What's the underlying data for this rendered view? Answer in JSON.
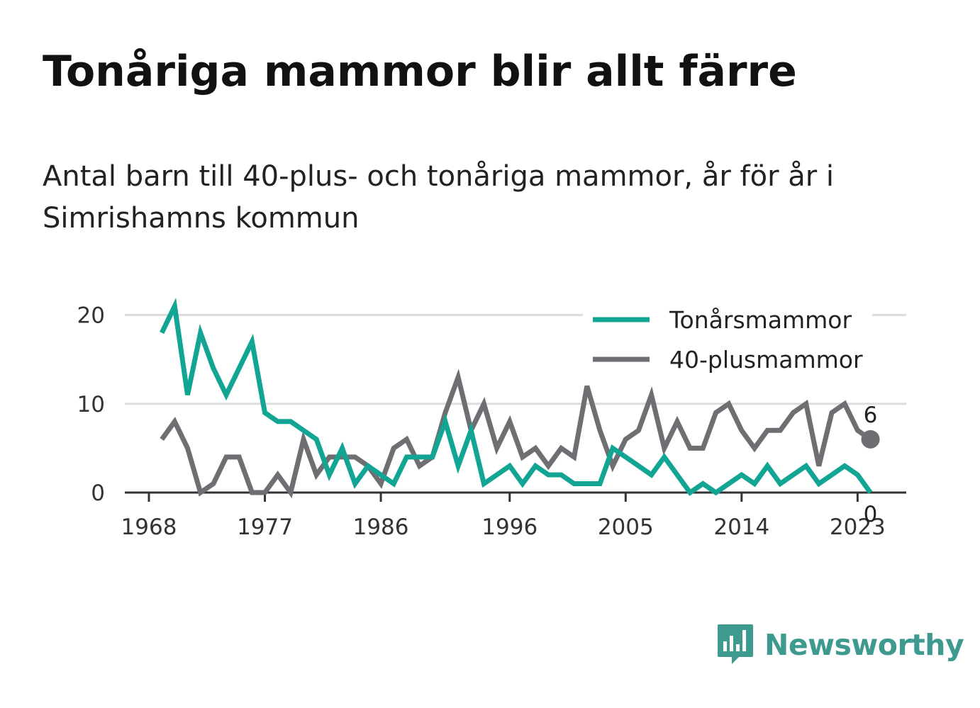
{
  "title": "Tonåriga mammor blir allt färre",
  "subtitle": "Antal barn till 40-plus- och tonåriga mammor, år för år i Simrishamns kommun",
  "brand": {
    "name": "Newsworthy",
    "icon": "newsworthy-logo-icon",
    "color": "#3e9a8f"
  },
  "chart_data": {
    "type": "line",
    "x": [
      1969,
      1970,
      1971,
      1972,
      1973,
      1974,
      1975,
      1976,
      1977,
      1978,
      1979,
      1980,
      1981,
      1982,
      1983,
      1984,
      1985,
      1986,
      1987,
      1988,
      1989,
      1990,
      1991,
      1992,
      1993,
      1994,
      1995,
      1996,
      1997,
      1998,
      1999,
      2000,
      2001,
      2002,
      2003,
      2004,
      2005,
      2006,
      2007,
      2008,
      2009,
      2010,
      2011,
      2012,
      2013,
      2014,
      2015,
      2016,
      2017,
      2018,
      2019,
      2020,
      2021,
      2022,
      2023,
      2024
    ],
    "series": [
      {
        "name": "Tonårsmammor",
        "color": "#12a594",
        "values": [
          18,
          21,
          11,
          18,
          14,
          11,
          14,
          17,
          9,
          8,
          8,
          7,
          6,
          2,
          5,
          1,
          3,
          2,
          1,
          4,
          4,
          4,
          8,
          3,
          7,
          1,
          2,
          3,
          1,
          3,
          2,
          2,
          1,
          1,
          1,
          5,
          4,
          3,
          2,
          4,
          2,
          0,
          1,
          0,
          1,
          2,
          1,
          3,
          1,
          2,
          3,
          1,
          2,
          3,
          2,
          0
        ]
      },
      {
        "name": "40-plusmammor",
        "color": "#6e6e73",
        "values": [
          6,
          8,
          5,
          0,
          1,
          4,
          4,
          0,
          0,
          2,
          0,
          6,
          2,
          4,
          4,
          4,
          3,
          1,
          5,
          6,
          3,
          4,
          9,
          13,
          7,
          10,
          5,
          8,
          4,
          5,
          3,
          5,
          4,
          12,
          7,
          3,
          6,
          7,
          11,
          5,
          8,
          5,
          5,
          9,
          10,
          7,
          5,
          7,
          7,
          9,
          10,
          3,
          9,
          10,
          7,
          6
        ]
      }
    ],
    "x_ticks": [
      "1968",
      "1977",
      "1986",
      "1996",
      "2005",
      "2014",
      "2023"
    ],
    "y_ticks": [
      "0",
      "10",
      "20"
    ],
    "end_labels": {
      "tonar": "0",
      "plus40": "6"
    },
    "xlim": [
      1968,
      2027
    ],
    "ylim": [
      0,
      21
    ],
    "grid": true,
    "legend_position": "top-right"
  }
}
